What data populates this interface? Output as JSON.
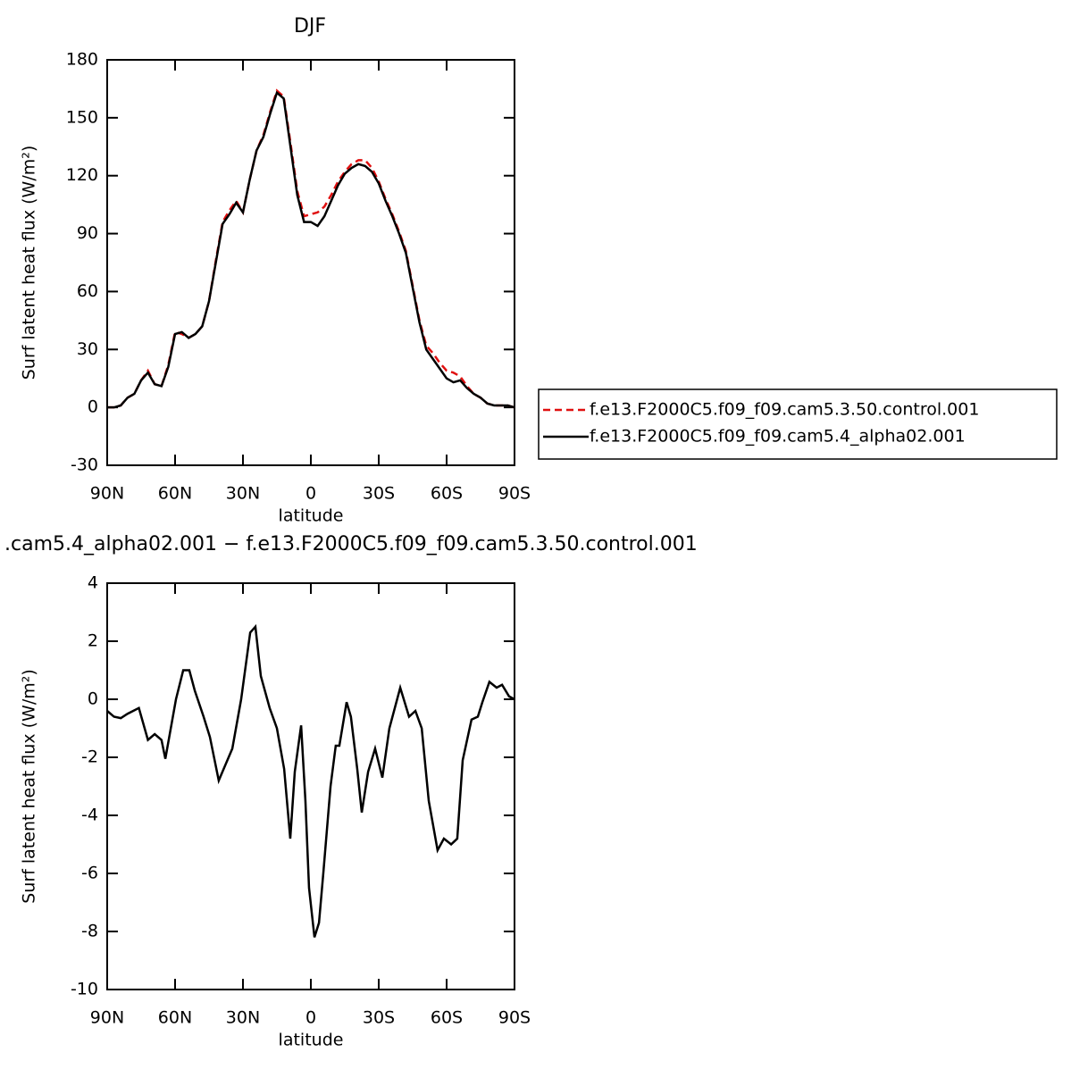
{
  "chart_data": [
    {
      "type": "line",
      "title": "DJF",
      "xlabel": "latitude",
      "ylabel": "Surf latent heat flux (W/m²)",
      "x": [
        90,
        87,
        84,
        81,
        78,
        75,
        72,
        69,
        66,
        63,
        60,
        57,
        54,
        51,
        48,
        45,
        42,
        39,
        36,
        33,
        30,
        27,
        24,
        21,
        18,
        15,
        12,
        9,
        6,
        3,
        0,
        -3,
        -6,
        -9,
        -12,
        -15,
        -18,
        -21,
        -24,
        -27,
        -30,
        -33,
        -36,
        -39,
        -42,
        -45,
        -48,
        -51,
        -54,
        -57,
        -60,
        -63,
        -66,
        -69,
        -72,
        -75,
        -78,
        -81,
        -84,
        -87,
        -90
      ],
      "series": [
        {
          "name": "f.e13.F2000C5.f09_f09.cam5.3.50.control.001",
          "color": "#e01010",
          "line_style": "dashed",
          "values": [
            0,
            0,
            1,
            5,
            7,
            14,
            19,
            12,
            11,
            22,
            39,
            38,
            36,
            38,
            42,
            55,
            76,
            96,
            102,
            107,
            101,
            118,
            133,
            141,
            153,
            164,
            161,
            137,
            112,
            99,
            100,
            101,
            104,
            110,
            117,
            122,
            126,
            128,
            128,
            124,
            117,
            108,
            100,
            91,
            81,
            63,
            45,
            32,
            28,
            23,
            19,
            18,
            16,
            11,
            7,
            5,
            2,
            1,
            1,
            1,
            0
          ]
        },
        {
          "name": "f.e13.F2000C5.f09_f09.cam5.4_alpha02.001",
          "color": "#000000",
          "line_style": "solid",
          "values": [
            0,
            0,
            1,
            5,
            7,
            14,
            18,
            12,
            11,
            21,
            38,
            39,
            36,
            38,
            42,
            55,
            75,
            95,
            100,
            106,
            101,
            118,
            133,
            140,
            152,
            163,
            160,
            135,
            110,
            96,
            96,
            94,
            99,
            107,
            115,
            121,
            124,
            126,
            125,
            122,
            116,
            107,
            99,
            90,
            80,
            62,
            44,
            30,
            25,
            20,
            15,
            13,
            14,
            10,
            7,
            5,
            2,
            1,
            1,
            1,
            0
          ]
        }
      ],
      "xlim": [
        90,
        -90
      ],
      "xticks": [
        {
          "value": 90,
          "label": "90N"
        },
        {
          "value": 60,
          "label": "60N"
        },
        {
          "value": 30,
          "label": "30N"
        },
        0,
        {
          "value": -30,
          "label": "30S"
        },
        {
          "value": -60,
          "label": "60S"
        },
        {
          "value": -90,
          "label": "90S"
        }
      ],
      "ylim": [
        -30,
        180
      ],
      "yticks": [
        -30,
        0,
        30,
        60,
        90,
        120,
        150,
        180
      ],
      "legend": "right"
    },
    {
      "type": "line",
      "title": ".cam5.4_alpha02.001 − f.e13.F2000C5.f09_f09.cam5.3.50.control.001",
      "xlabel": "latitude",
      "ylabel": "Surf latent heat flux (W/m²)",
      "x": [
        90,
        87,
        84,
        81,
        76,
        72,
        69,
        66,
        64.3,
        59.6,
        56.4,
        53.7,
        51.3,
        47.4,
        44.6,
        40.7,
        34.7,
        30.8,
        26.8,
        24.5,
        22.1,
        18.2,
        15,
        11.8,
        9.1,
        7.1,
        4.3,
        2.4,
        0.8,
        -1.6,
        -3.6,
        -5.5,
        -8.7,
        -11,
        -12.6,
        -15.8,
        -17.7,
        -20.5,
        -22.5,
        -25.3,
        -28.4,
        -31.6,
        -34.7,
        -39.5,
        -43.4,
        -46.2,
        -49,
        -52.1,
        -56,
        -58.8,
        -62,
        -64.7,
        -67.1,
        -71,
        -73.8,
        -75.8,
        -78.9,
        -82.1,
        -84.5,
        -87.6,
        -90
      ],
      "series": [
        {
          "name": null,
          "color": "#000000",
          "line_style": "solid",
          "values": [
            -0.4,
            -0.6,
            -0.65,
            -0.5,
            -0.3,
            -1.4,
            -1.2,
            -1.4,
            -2.05,
            0,
            1.0,
            1.0,
            0.3,
            -0.6,
            -1.3,
            -2.8,
            -1.7,
            0,
            2.3,
            2.5,
            0.8,
            -0.3,
            -1.0,
            -2.4,
            -4.8,
            -2.5,
            -0.9,
            -3.5,
            -6.5,
            -8.2,
            -7.7,
            -6.0,
            -3.0,
            -1.6,
            -1.6,
            -0.1,
            -0.6,
            -2.4,
            -3.9,
            -2.5,
            -1.7,
            -2.7,
            -1.0,
            0.4,
            -0.6,
            -0.4,
            -1.0,
            -3.5,
            -5.2,
            -4.8,
            -5.0,
            -4.8,
            -2.1,
            -0.7,
            -0.6,
            -0.1,
            0.6,
            0.4,
            0.5,
            0.1,
            0
          ]
        }
      ],
      "xlim": [
        90,
        -90
      ],
      "xticks": [
        {
          "value": 90,
          "label": "90N"
        },
        {
          "value": 60,
          "label": "60N"
        },
        {
          "value": 30,
          "label": "30N"
        },
        0,
        {
          "value": -30,
          "label": "30S"
        },
        {
          "value": -60,
          "label": "60S"
        },
        {
          "value": -90,
          "label": "90S"
        }
      ],
      "ylim": [
        -10,
        4
      ],
      "yticks": [
        -10,
        -8,
        -6,
        -4,
        -2,
        0,
        2,
        4
      ]
    }
  ]
}
